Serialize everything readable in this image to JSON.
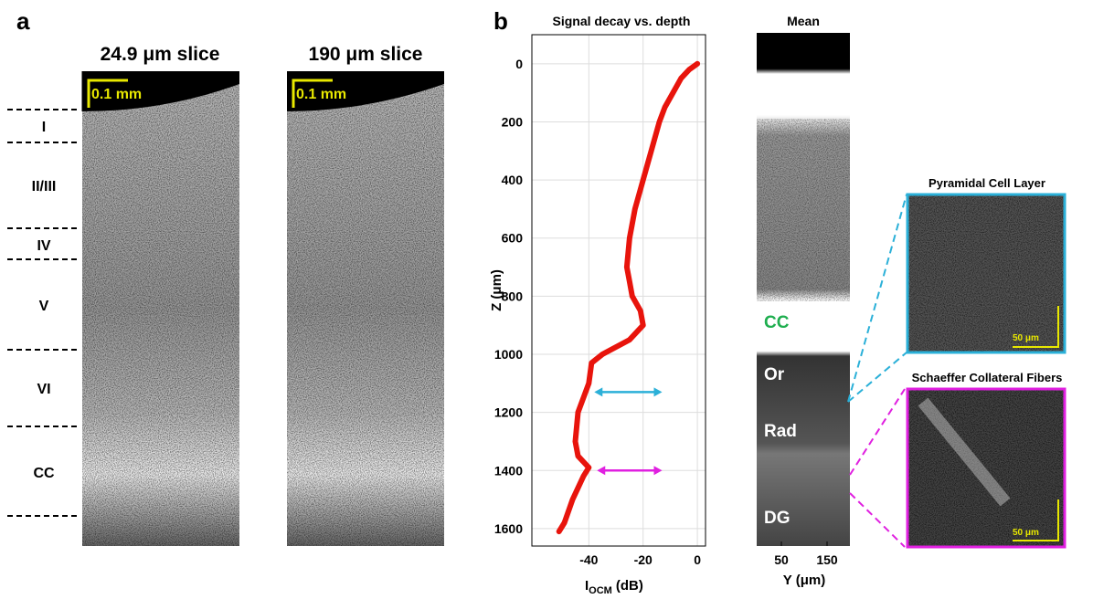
{
  "panel_a": {
    "label": "a",
    "slices": [
      {
        "title": "24.9 μm slice",
        "scale_bar": "0.1 mm"
      },
      {
        "title": "190 μm slice",
        "scale_bar": "0.1 mm"
      }
    ],
    "layers": [
      "I",
      "II/III",
      "IV",
      "V",
      "VI",
      "CC"
    ]
  },
  "panel_b": {
    "label": "b"
  },
  "chart_data": {
    "type": "line",
    "title": "Signal decay vs. depth",
    "x_label": {
      "main": "I",
      "sub": "OCM",
      "unit": "(dB)"
    },
    "y_label": "Z (μm)",
    "x": [
      0,
      -3,
      -6,
      -9,
      -12,
      -14,
      -17,
      -20,
      -23,
      -25,
      -26,
      -25,
      -24,
      -21,
      -20,
      -25,
      -35,
      -39,
      -40,
      -44,
      -45,
      -44,
      -40,
      -42,
      -46,
      -49,
      -51
    ],
    "values": [
      0,
      20,
      50,
      100,
      150,
      200,
      300,
      400,
      500,
      600,
      700,
      750,
      800,
      850,
      900,
      950,
      1000,
      1030,
      1100,
      1200,
      1300,
      1350,
      1390,
      1420,
      1500,
      1580,
      1610
    ],
    "color": "#e8140c",
    "xlim": [
      -61,
      3
    ],
    "xticks": [
      -40,
      -20,
      0
    ],
    "ylim": [
      -100,
      1660
    ],
    "y_reversed": true,
    "yticks": [
      0,
      200,
      400,
      600,
      800,
      1000,
      1200,
      1400,
      1600
    ],
    "grid": true,
    "arrows": [
      {
        "color": "#2bb0d8",
        "y": 1130,
        "x": [
          -38,
          -13
        ]
      },
      {
        "color": "#e020e0",
        "y": 1400,
        "x": [
          -37,
          -13
        ]
      }
    ]
  },
  "mean_panel": {
    "title": "Mean",
    "x_label": "Y (μm)",
    "xlim": [
      0,
      200
    ],
    "xticks": [
      50,
      150
    ],
    "regions": [
      "CC",
      "Or",
      "Rad",
      "DG"
    ]
  },
  "insets": [
    {
      "title": "Pyramidal Cell Layer",
      "scale_bar": "50 μm",
      "color": "#2bb0d8"
    },
    {
      "title": "Schaeffer Collateral Fibers",
      "scale_bar": "50 μm",
      "color": "#e020e0"
    }
  ]
}
